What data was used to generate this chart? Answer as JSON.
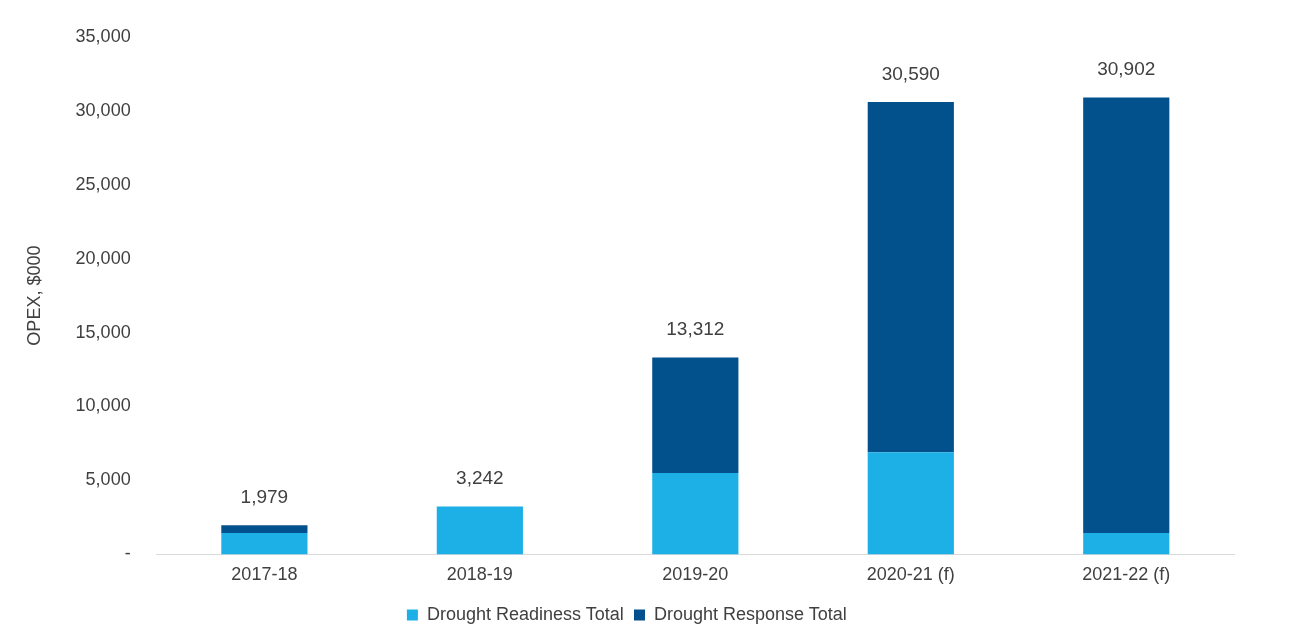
{
  "chart_data": {
    "type": "bar",
    "stacked": true,
    "ylabel": "OPEX, $000",
    "categories": [
      "2017-18",
      "2018-19",
      "2019-20",
      "2020-21 (f)",
      "2021-22 (f)"
    ],
    "series": [
      {
        "name": "Drought Readiness Total",
        "color": "#1cb0e6",
        "values": [
          1450,
          3242,
          5500,
          6900,
          1450
        ]
      },
      {
        "name": "Drought Response Total",
        "color": "#03518c",
        "values": [
          529,
          0,
          7812,
          23690,
          29452
        ]
      }
    ],
    "totals": [
      "1,979",
      "3,242",
      "13,312",
      "30,590",
      "30,902"
    ],
    "ylim": [
      0,
      35000
    ],
    "yticks": [
      {
        "value": 0,
        "label": "-"
      },
      {
        "value": 5000,
        "label": "5,000"
      },
      {
        "value": 10000,
        "label": "10,000"
      },
      {
        "value": 15000,
        "label": "15,000"
      },
      {
        "value": 20000,
        "label": "20,000"
      },
      {
        "value": 25000,
        "label": "25,000"
      },
      {
        "value": 30000,
        "label": "30,000"
      },
      {
        "value": 35000,
        "label": "35,000"
      }
    ],
    "grid": false,
    "legend": "bottom"
  }
}
